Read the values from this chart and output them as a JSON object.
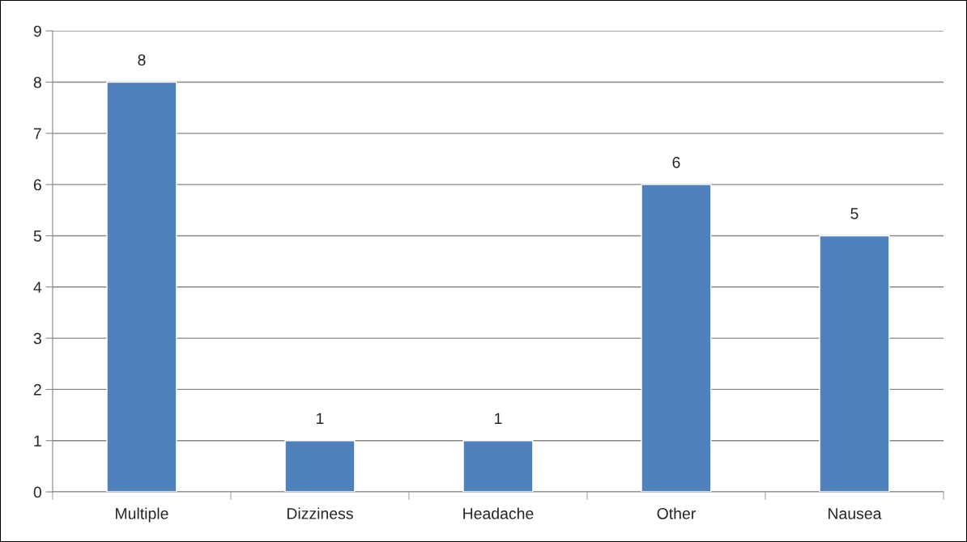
{
  "chart_data": {
    "type": "bar",
    "categories": [
      "Multiple",
      "Dizziness",
      "Headache",
      "Other",
      "Nausea"
    ],
    "values": [
      8,
      1,
      1,
      6,
      5
    ],
    "color": "#4f81bd",
    "ylim": [
      0,
      9
    ],
    "yticks": [
      0,
      1,
      2,
      3,
      4,
      5,
      6,
      7,
      8,
      9
    ],
    "grid": "y",
    "data_labels": true
  }
}
